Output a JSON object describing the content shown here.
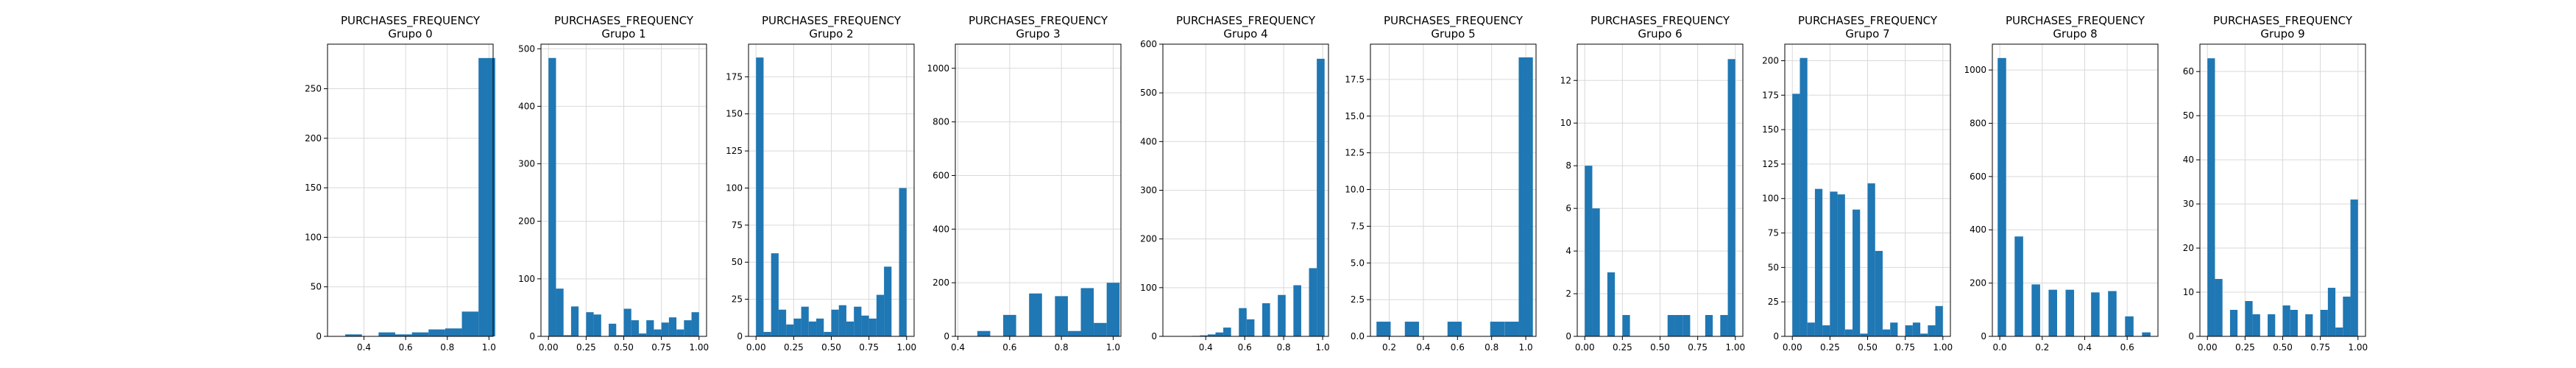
{
  "chart_data": [
    {
      "type": "bar",
      "title": "PURCHASES_FREQUENCY",
      "subtitle": "Grupo 0",
      "x": [
        0.27,
        0.35,
        0.43,
        0.51,
        0.59,
        0.67,
        0.75,
        0.83,
        0.91,
        0.99
      ],
      "values": [
        0,
        2,
        0,
        4,
        2,
        4,
        7,
        8,
        25,
        281
      ],
      "xlim": [
        0.225,
        1.02
      ],
      "ylim": [
        0,
        295
      ],
      "xticks": [
        {
          "v": 0.4,
          "l": "0.4"
        },
        {
          "v": 0.6,
          "l": "0.6"
        },
        {
          "v": 0.8,
          "l": "0.8"
        },
        {
          "v": 1.0,
          "l": "1.0"
        }
      ],
      "yticks": [
        {
          "v": 0,
          "l": "0"
        },
        {
          "v": 50,
          "l": "50"
        },
        {
          "v": 100,
          "l": "100"
        },
        {
          "v": 150,
          "l": "150"
        },
        {
          "v": 200,
          "l": "200"
        },
        {
          "v": 250,
          "l": "250"
        }
      ]
    },
    {
      "type": "bar",
      "title": "PURCHASES_FREQUENCY",
      "subtitle": "Grupo 1",
      "x": [
        0.025,
        0.075,
        0.125,
        0.175,
        0.225,
        0.275,
        0.325,
        0.375,
        0.425,
        0.475,
        0.525,
        0.575,
        0.625,
        0.675,
        0.725,
        0.775,
        0.825,
        0.875,
        0.925,
        0.975
      ],
      "values": [
        484,
        83,
        2,
        52,
        0,
        42,
        38,
        0,
        22,
        2,
        48,
        28,
        5,
        28,
        12,
        24,
        33,
        12,
        28,
        42
      ],
      "xlim": [
        -0.05,
        1.05
      ],
      "ylim": [
        0,
        508
      ],
      "xticks": [
        {
          "v": 0,
          "l": "0.00"
        },
        {
          "v": 0.25,
          "l": "0.25"
        },
        {
          "v": 0.5,
          "l": "0.50"
        },
        {
          "v": 0.75,
          "l": "0.75"
        },
        {
          "v": 1.0,
          "l": "1.00"
        }
      ],
      "yticks": [
        {
          "v": 0,
          "l": "0"
        },
        {
          "v": 100,
          "l": "100"
        },
        {
          "v": 200,
          "l": "200"
        },
        {
          "v": 300,
          "l": "300"
        },
        {
          "v": 400,
          "l": "400"
        },
        {
          "v": 500,
          "l": "500"
        }
      ]
    },
    {
      "type": "bar",
      "title": "PURCHASES_FREQUENCY",
      "subtitle": "Grupo 2",
      "x": [
        0.025,
        0.075,
        0.125,
        0.175,
        0.225,
        0.275,
        0.325,
        0.375,
        0.425,
        0.475,
        0.525,
        0.575,
        0.625,
        0.675,
        0.725,
        0.775,
        0.825,
        0.875,
        0.925,
        0.975
      ],
      "values": [
        188,
        3,
        56,
        18,
        8,
        12,
        20,
        10,
        12,
        3,
        18,
        21,
        10,
        20,
        14,
        12,
        28,
        47,
        0,
        100
      ],
      "xlim": [
        -0.05,
        1.05
      ],
      "ylim": [
        0,
        197
      ],
      "xticks": [
        {
          "v": 0,
          "l": "0.00"
        },
        {
          "v": 0.25,
          "l": "0.25"
        },
        {
          "v": 0.5,
          "l": "0.50"
        },
        {
          "v": 0.75,
          "l": "0.75"
        },
        {
          "v": 1.0,
          "l": "1.00"
        }
      ],
      "yticks": [
        {
          "v": 0,
          "l": "0"
        },
        {
          "v": 25,
          "l": "25"
        },
        {
          "v": 50,
          "l": "50"
        },
        {
          "v": 75,
          "l": "75"
        },
        {
          "v": 100,
          "l": "100"
        },
        {
          "v": 125,
          "l": "125"
        },
        {
          "v": 150,
          "l": "150"
        },
        {
          "v": 175,
          "l": "175"
        }
      ]
    },
    {
      "type": "bar",
      "title": "PURCHASES_FREQUENCY",
      "subtitle": "Grupo 3",
      "x": [
        0.45,
        0.5,
        0.55,
        0.6,
        0.65,
        0.7,
        0.75,
        0.8,
        0.85,
        0.9,
        0.95,
        1.0
      ],
      "values": [
        0,
        20,
        0,
        80,
        0,
        160,
        0,
        150,
        20,
        180,
        50,
        200
      ],
      "xlim": [
        0.39,
        1.03
      ],
      "ylim": [
        0,
        1090
      ],
      "xticks": [
        {
          "v": 0.4,
          "l": "0.4"
        },
        {
          "v": 0.6,
          "l": "0.6"
        },
        {
          "v": 0.8,
          "l": "0.8"
        },
        {
          "v": 1.0,
          "l": "1.0"
        }
      ],
      "yticks": [
        {
          "v": 0,
          "l": "0"
        },
        {
          "v": 200,
          "l": "200"
        },
        {
          "v": 400,
          "l": "400"
        },
        {
          "v": 600,
          "l": "600"
        },
        {
          "v": 800,
          "l": "800"
        },
        {
          "v": 1000,
          "l": "1000"
        }
      ]
    },
    {
      "type": "bar",
      "title": "PURCHASES_FREQUENCY",
      "subtitle": "Grupo 4",
      "x": [
        0.27,
        0.31,
        0.35,
        0.39,
        0.43,
        0.47,
        0.51,
        0.55,
        0.59,
        0.63,
        0.67,
        0.71,
        0.75,
        0.79,
        0.83,
        0.87,
        0.91,
        0.95,
        0.99
      ],
      "values": [
        0,
        0,
        1,
        2,
        4,
        8,
        18,
        0,
        58,
        35,
        0,
        68,
        0,
        85,
        0,
        105,
        0,
        140,
        570
      ],
      "xlim": [
        0.18,
        1.03
      ],
      "ylim": [
        0,
        600
      ],
      "xticks": [
        {
          "v": 0.4,
          "l": "0.4"
        },
        {
          "v": 0.6,
          "l": "0.6"
        },
        {
          "v": 0.8,
          "l": "0.8"
        },
        {
          "v": 1.0,
          "l": "1.0"
        }
      ],
      "yticks": [
        {
          "v": 0,
          "l": "0"
        },
        {
          "v": 100,
          "l": "100"
        },
        {
          "v": 200,
          "l": "200"
        },
        {
          "v": 300,
          "l": "300"
        },
        {
          "v": 400,
          "l": "400"
        },
        {
          "v": 500,
          "l": "500"
        },
        {
          "v": 600,
          "l": "600"
        }
      ]
    },
    {
      "type": "bar",
      "title": "PURCHASES_FREQUENCY",
      "subtitle": "Grupo 5",
      "x": [
        0.167,
        0.25,
        0.333,
        0.417,
        0.5,
        0.583,
        0.667,
        0.75,
        0.833,
        0.917,
        1.0
      ],
      "values": [
        1,
        0,
        1,
        0,
        0,
        1,
        0,
        0,
        1,
        1,
        19
      ],
      "xlim": [
        0.09,
        1.06
      ],
      "ylim": [
        0,
        19.9
      ],
      "xticks": [
        {
          "v": 0.2,
          "l": "0.2"
        },
        {
          "v": 0.4,
          "l": "0.4"
        },
        {
          "v": 0.6,
          "l": "0.6"
        },
        {
          "v": 0.8,
          "l": "0.8"
        },
        {
          "v": 1.0,
          "l": "1.0"
        }
      ],
      "yticks": [
        {
          "v": 0,
          "l": "0.0"
        },
        {
          "v": 2.5,
          "l": "2.5"
        },
        {
          "v": 5,
          "l": "5.0"
        },
        {
          "v": 7.5,
          "l": "7.5"
        },
        {
          "v": 10,
          "l": "10.0"
        },
        {
          "v": 12.5,
          "l": "12.5"
        },
        {
          "v": 15,
          "l": "15.0"
        },
        {
          "v": 17.5,
          "l": "17.5"
        }
      ]
    },
    {
      "type": "bar",
      "title": "PURCHASES_FREQUENCY",
      "subtitle": "Grupo 6",
      "x": [
        0.025,
        0.075,
        0.125,
        0.175,
        0.225,
        0.275,
        0.325,
        0.375,
        0.425,
        0.475,
        0.525,
        0.575,
        0.625,
        0.675,
        0.725,
        0.775,
        0.825,
        0.875,
        0.925,
        0.975
      ],
      "values": [
        8,
        6,
        0,
        3,
        0,
        1,
        0,
        0,
        0,
        0,
        0,
        1,
        1,
        1,
        0,
        0,
        1,
        0,
        1,
        13
      ],
      "xlim": [
        -0.05,
        1.05
      ],
      "ylim": [
        0,
        13.7
      ],
      "xticks": [
        {
          "v": 0,
          "l": "0.00"
        },
        {
          "v": 0.25,
          "l": "0.25"
        },
        {
          "v": 0.5,
          "l": "0.50"
        },
        {
          "v": 0.75,
          "l": "0.75"
        },
        {
          "v": 1.0,
          "l": "1.00"
        }
      ],
      "yticks": [
        {
          "v": 0,
          "l": "0"
        },
        {
          "v": 2,
          "l": "2"
        },
        {
          "v": 4,
          "l": "4"
        },
        {
          "v": 6,
          "l": "6"
        },
        {
          "v": 8,
          "l": "8"
        },
        {
          "v": 10,
          "l": "10"
        },
        {
          "v": 12,
          "l": "12"
        }
      ]
    },
    {
      "type": "bar",
      "title": "PURCHASES_FREQUENCY",
      "subtitle": "Grupo 7",
      "x": [
        0.025,
        0.075,
        0.125,
        0.175,
        0.225,
        0.275,
        0.325,
        0.375,
        0.425,
        0.475,
        0.525,
        0.575,
        0.625,
        0.675,
        0.725,
        0.775,
        0.825,
        0.875,
        0.925,
        0.975
      ],
      "values": [
        176,
        202,
        10,
        107,
        8,
        105,
        103,
        5,
        92,
        2,
        111,
        62,
        5,
        10,
        0,
        8,
        10,
        2,
        8,
        22
      ],
      "xlim": [
        -0.05,
        1.05
      ],
      "ylim": [
        0,
        212
      ],
      "xticks": [
        {
          "v": 0,
          "l": "0.00"
        },
        {
          "v": 0.25,
          "l": "0.25"
        },
        {
          "v": 0.5,
          "l": "0.50"
        },
        {
          "v": 0.75,
          "l": "0.75"
        },
        {
          "v": 1.0,
          "l": "1.00"
        }
      ],
      "yticks": [
        {
          "v": 0,
          "l": "0"
        },
        {
          "v": 25,
          "l": "25"
        },
        {
          "v": 50,
          "l": "50"
        },
        {
          "v": 75,
          "l": "75"
        },
        {
          "v": 100,
          "l": "100"
        },
        {
          "v": 125,
          "l": "125"
        },
        {
          "v": 150,
          "l": "150"
        },
        {
          "v": 175,
          "l": "175"
        },
        {
          "v": 200,
          "l": "200"
        }
      ]
    },
    {
      "type": "bar",
      "title": "PURCHASES_FREQUENCY",
      "subtitle": "Grupo 8",
      "x": [
        0.01,
        0.05,
        0.09,
        0.13,
        0.17,
        0.21,
        0.25,
        0.29,
        0.33,
        0.37,
        0.41,
        0.45,
        0.49,
        0.53,
        0.57,
        0.61,
        0.65,
        0.69
      ],
      "values": [
        1045,
        0,
        375,
        0,
        195,
        0,
        175,
        0,
        175,
        0,
        0,
        165,
        0,
        170,
        0,
        75,
        0,
        15
      ],
      "xlim": [
        -0.035,
        0.745
      ],
      "ylim": [
        0,
        1097
      ],
      "xticks": [
        {
          "v": 0,
          "l": "0.0"
        },
        {
          "v": 0.2,
          "l": "0.2"
        },
        {
          "v": 0.4,
          "l": "0.4"
        },
        {
          "v": 0.6,
          "l": "0.6"
        }
      ],
      "yticks": [
        {
          "v": 0,
          "l": "0"
        },
        {
          "v": 200,
          "l": "200"
        },
        {
          "v": 400,
          "l": "400"
        },
        {
          "v": 600,
          "l": "600"
        },
        {
          "v": 800,
          "l": "800"
        },
        {
          "v": 1000,
          "l": "1000"
        }
      ]
    },
    {
      "type": "bar",
      "title": "PURCHASES_FREQUENCY",
      "subtitle": "Grupo 9",
      "x": [
        0.025,
        0.075,
        0.125,
        0.175,
        0.225,
        0.275,
        0.325,
        0.375,
        0.425,
        0.475,
        0.525,
        0.575,
        0.625,
        0.675,
        0.725,
        0.775,
        0.825,
        0.875,
        0.925,
        0.975
      ],
      "values": [
        63,
        13,
        0,
        6,
        0,
        8,
        5,
        0,
        5,
        0,
        7,
        6,
        0,
        5,
        0,
        6,
        11,
        2,
        9,
        31
      ],
      "xlim": [
        -0.05,
        1.05
      ],
      "ylim": [
        0,
        66.2
      ],
      "xticks": [
        {
          "v": 0,
          "l": "0.00"
        },
        {
          "v": 0.25,
          "l": "0.25"
        },
        {
          "v": 0.5,
          "l": "0.50"
        },
        {
          "v": 0.75,
          "l": "0.75"
        },
        {
          "v": 1.0,
          "l": "1.00"
        }
      ],
      "yticks": [
        {
          "v": 0,
          "l": "0"
        },
        {
          "v": 10,
          "l": "10"
        },
        {
          "v": 20,
          "l": "20"
        },
        {
          "v": 30,
          "l": "30"
        },
        {
          "v": 40,
          "l": "40"
        },
        {
          "v": 50,
          "l": "50"
        },
        {
          "v": 60,
          "l": "60"
        }
      ]
    }
  ],
  "colors": {
    "bar": "#1f77b4",
    "grid": "#d9d9d9",
    "axis": "#000000"
  },
  "grid": true
}
